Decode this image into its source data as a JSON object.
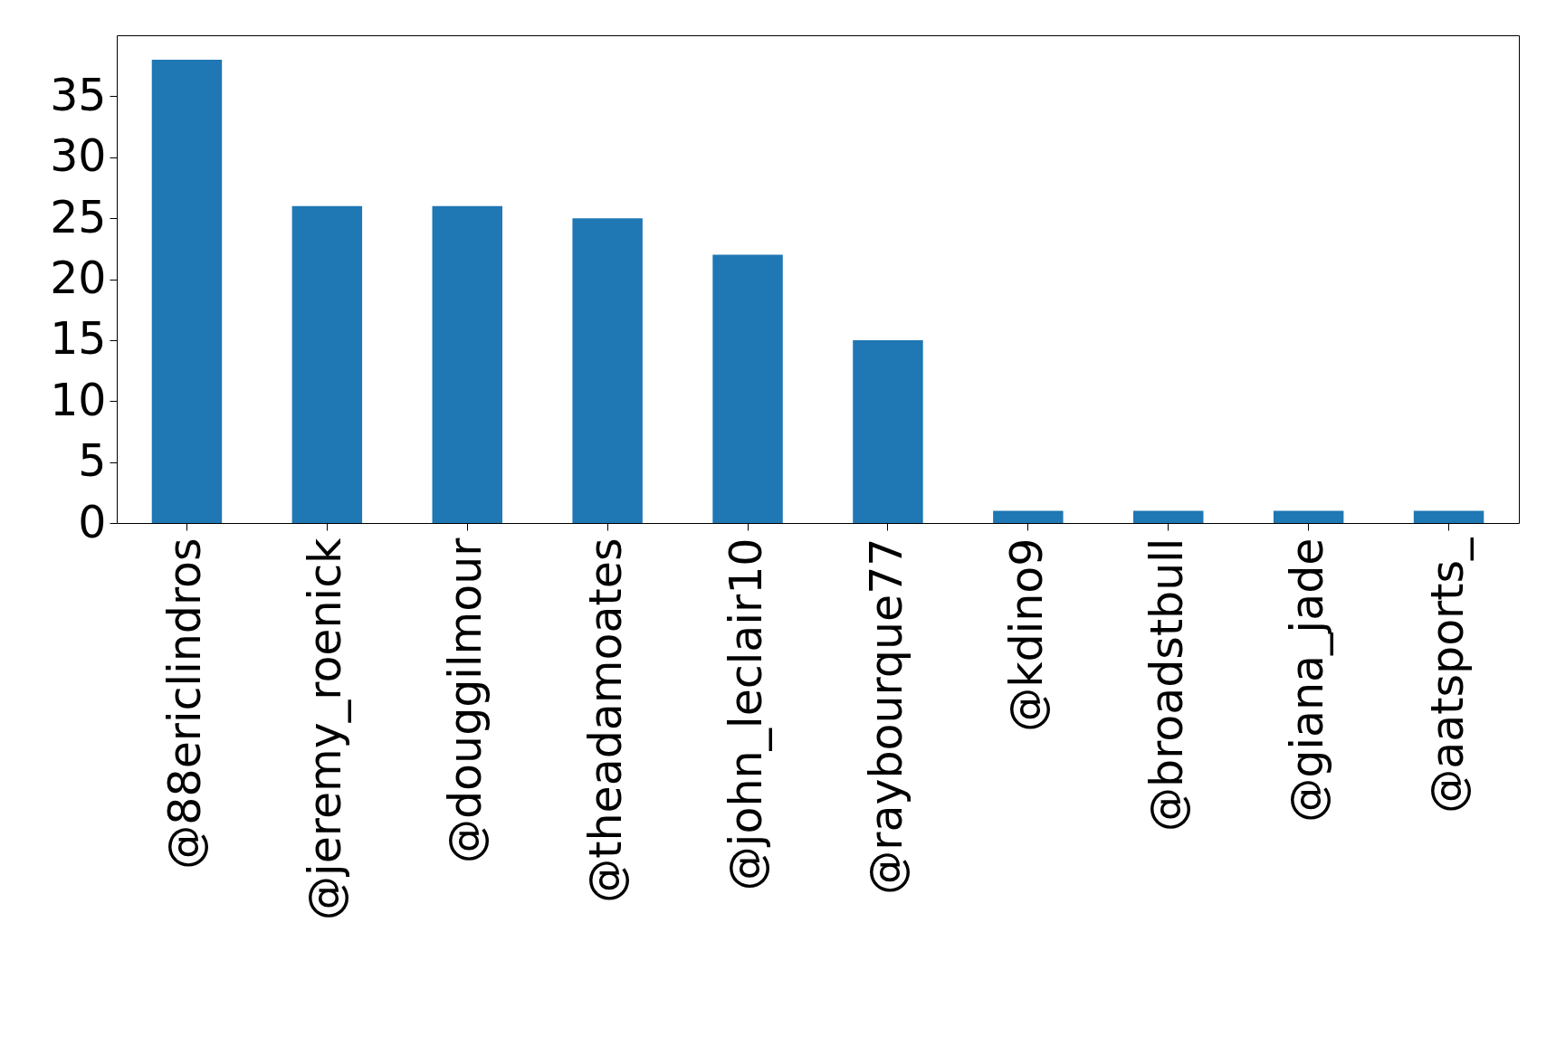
{
  "chart_data": {
    "type": "bar",
    "categories": [
      "@88ericlindros",
      "@jeremy_roenick",
      "@douggilmour",
      "@theadamoates",
      "@john_leclair10",
      "@raybourque77",
      "@kdino9",
      "@broadstbull",
      "@giana_jade",
      "@aatsports_"
    ],
    "values": [
      38,
      26,
      26,
      25,
      22,
      15,
      1,
      1,
      1,
      1
    ],
    "color": "#1f77b4",
    "ylim": [
      0,
      40
    ],
    "yticks": [
      0,
      5,
      10,
      15,
      20,
      25,
      30,
      35
    ],
    "grid": false
  }
}
